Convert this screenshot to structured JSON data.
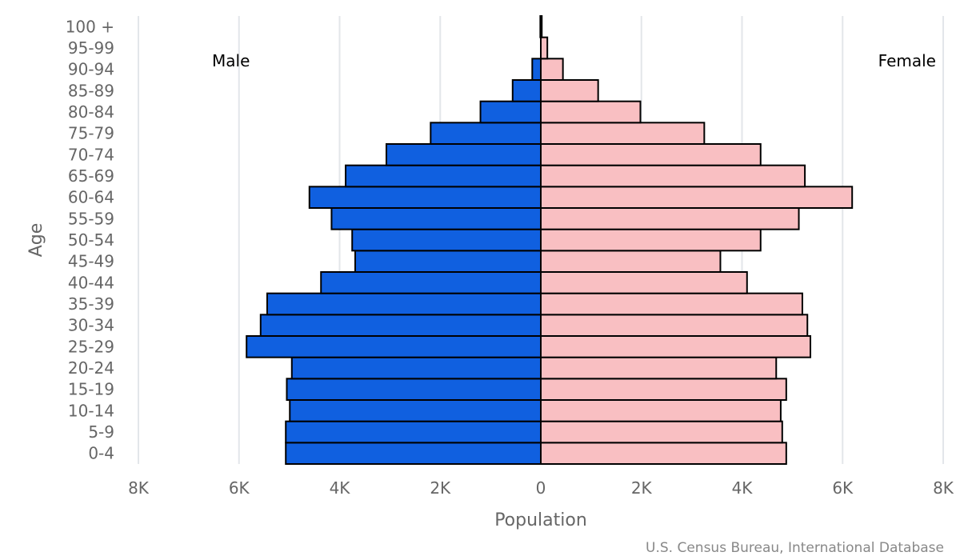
{
  "chart_data": {
    "type": "bar",
    "orientation": "horizontal",
    "layout": "population-pyramid",
    "categories": [
      "0-4",
      "5-9",
      "10-14",
      "15-19",
      "20-24",
      "25-29",
      "30-34",
      "35-39",
      "40-44",
      "45-49",
      "50-54",
      "55-59",
      "60-64",
      "65-69",
      "70-74",
      "75-79",
      "80-84",
      "85-89",
      "90-94",
      "95-99",
      "100 +"
    ],
    "series": [
      {
        "name": "Male",
        "color": "#1060e0",
        "values": [
          5070,
          5070,
          4990,
          5050,
          4950,
          5850,
          5570,
          5440,
          4370,
          3690,
          3750,
          4160,
          4600,
          3880,
          3070,
          2190,
          1200,
          560,
          170,
          0,
          10
        ]
      },
      {
        "name": "Female",
        "color": "#f9bfc2",
        "values": [
          4880,
          4800,
          4770,
          4880,
          4680,
          5360,
          5300,
          5200,
          4100,
          3570,
          4370,
          5130,
          6190,
          5250,
          4370,
          3250,
          1980,
          1140,
          440,
          130,
          20
        ]
      }
    ],
    "xlim": [
      -8000,
      8000
    ],
    "x_ticks": [
      -8000,
      -6000,
      -4000,
      -2000,
      0,
      2000,
      4000,
      6000,
      8000
    ],
    "x_tick_labels": [
      "8K",
      "6K",
      "4K",
      "2K",
      "0",
      "2K",
      "4K",
      "6K",
      "8K"
    ],
    "y_tick_labels": [
      "0-4",
      "5-9",
      "10-14",
      "15-19",
      "20-24",
      "25-29",
      "30-34",
      "35-39",
      "40-44",
      "45-49",
      "50-54",
      "55-59",
      "60-64",
      "65-69",
      "70-74",
      "75-79",
      "80-84",
      "85-89",
      "90-94",
      "95-99",
      "100 +"
    ],
    "xlabel": "Population",
    "ylabel": "Age",
    "male_label": "Male",
    "female_label": "Female",
    "source": "U.S. Census Bureau, International Database",
    "grid": true
  }
}
